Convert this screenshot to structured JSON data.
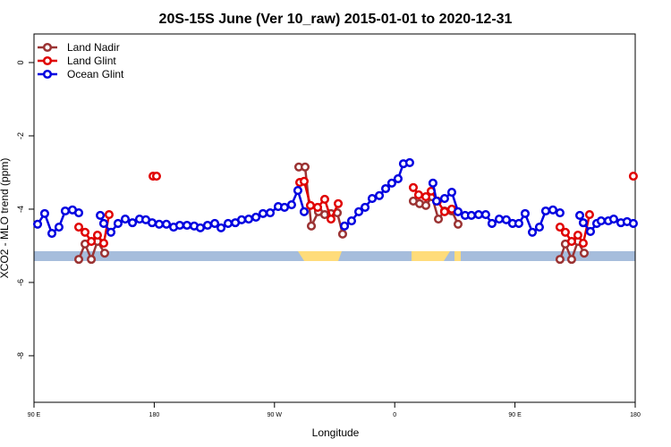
{
  "chart_data": {
    "type": "line",
    "title": "20S-15S June (Ver 10_raw)   2015-01-01 to 2020-12-31",
    "x_label": "Longitude",
    "y_label": "XCO2 - MLO trend (ppm)",
    "xlim": [
      90,
      540
    ],
    "ylim": [
      -9.27,
      0.78
    ],
    "xticks": [
      {
        "value": 90,
        "label": "90 E"
      },
      180,
      {
        "value": 270,
        "label": "90 W"
      },
      {
        "value": 360,
        "label": "0"
      },
      {
        "value": 450,
        "label": "90 E"
      },
      {
        "value": 540,
        "label": "180"
      }
    ],
    "yticks": [
      0,
      -2,
      -4,
      -6,
      -8
    ],
    "legend": "top-left",
    "series": [
      {
        "name": "Land Nadir",
        "color": "#9b3333",
        "x": [
          123.5,
          128.2,
          132.9,
          137.5,
          142.9,
          null,
          288.2,
          292.9,
          297.6,
          302.9,
          307.6,
          312.3,
          317.0,
          321.0,
          null,
          373.9,
          378.6,
          383.3,
          387.9,
          392.7,
          397.3,
          402.7,
          407.4,
          null,
          483.7,
          487.7,
          492.4,
          497.1,
          501.8
        ],
        "values": [
          -5.37,
          -4.95,
          -5.37,
          -4.88,
          -5.2,
          null,
          -2.85,
          -2.85,
          -4.46,
          -4.07,
          -4.15,
          -4.12,
          -4.1,
          -4.68,
          null,
          -3.78,
          -3.85,
          -3.9,
          -3.66,
          -4.27,
          -4.05,
          -4.05,
          -4.41,
          null,
          -5.37,
          -4.95,
          -5.37,
          -4.88,
          -5.2
        ]
      },
      {
        "name": "Land Glint",
        "color": "#e00000",
        "x": [
          123.5,
          128.2,
          132.9,
          137.5,
          142.2,
          146.2,
          null,
          179.1,
          181.7,
          null,
          288.9,
          292.2,
          296.9,
          302.3,
          307.6,
          312.3,
          317.7,
          null,
          373.9,
          377.9,
          383.3,
          387.3,
          392.0,
          397.3,
          402.7,
          null,
          483.7,
          487.7,
          492.4,
          497.1,
          501.1,
          505.8,
          null,
          538.6
        ],
        "values": [
          -4.49,
          -4.63,
          -4.88,
          -4.71,
          -4.93,
          -4.15,
          null,
          -3.1,
          -3.1,
          null,
          -3.27,
          -3.24,
          -3.9,
          -3.95,
          -3.73,
          -4.27,
          -3.85,
          null,
          -3.41,
          -3.61,
          -3.66,
          -3.51,
          -3.78,
          -4.07,
          -4.0,
          null,
          -4.49,
          -4.63,
          -4.88,
          -4.71,
          -4.93,
          -4.15,
          null,
          -3.1
        ]
      },
      {
        "name": "Ocean Glint",
        "color": "#0000e0",
        "x": [
          92.7,
          98.0,
          103.4,
          108.7,
          113.4,
          118.8,
          123.5,
          null,
          139.6,
          142.2,
          147.6,
          152.9,
          158.3,
          163.7,
          169.0,
          173.7,
          178.4,
          183.7,
          189.1,
          194.5,
          199.1,
          204.5,
          209.9,
          214.5,
          219.9,
          225.3,
          230.0,
          235.3,
          240.7,
          245.4,
          250.7,
          256.1,
          261.4,
          266.8,
          272.8,
          277.5,
          282.8,
          287.5,
          292.2,
          null,
          322.4,
          327.7,
          333.1,
          337.8,
          343.1,
          348.5,
          353.2,
          357.8,
          362.5,
          366.5,
          371.2,
          null,
          388.6,
          391.3,
          397.3,
          402.7,
          407.4,
          412.7,
          417.4,
          422.8,
          428.1,
          432.8,
          438.2,
          443.5,
          448.2,
          452.9,
          457.6,
          463.0,
          468.3,
          473.0,
          478.4,
          483.7,
          null,
          498.5,
          501.1,
          506.5,
          511.2,
          514.5,
          519.9,
          523.9,
          529.3,
          533.9,
          538.6
        ],
        "values": [
          -4.41,
          -4.12,
          -4.66,
          -4.49,
          -4.05,
          -4.02,
          -4.1,
          null,
          -4.17,
          -4.39,
          -4.63,
          -4.39,
          -4.27,
          -4.37,
          -4.27,
          -4.29,
          -4.37,
          -4.41,
          -4.41,
          -4.49,
          -4.44,
          -4.44,
          -4.46,
          -4.51,
          -4.44,
          -4.39,
          -4.51,
          -4.39,
          -4.37,
          -4.29,
          -4.27,
          -4.22,
          -4.12,
          -4.1,
          -3.93,
          -3.95,
          -3.88,
          -3.49,
          -4.07,
          null,
          -4.46,
          -4.32,
          -4.07,
          -3.95,
          -3.71,
          -3.63,
          -3.44,
          -3.29,
          -3.17,
          -2.76,
          -2.73,
          null,
          -3.29,
          -3.78,
          -3.71,
          -3.54,
          -4.07,
          -4.17,
          -4.17,
          -4.15,
          -4.15,
          -4.39,
          -4.27,
          -4.29,
          -4.39,
          -4.39,
          -4.12,
          -4.63,
          -4.49,
          -4.05,
          -4.02,
          -4.1,
          null,
          -4.17,
          -4.37,
          -4.61,
          -4.39,
          -4.32,
          -4.32,
          -4.27,
          -4.37,
          -4.34,
          -4.39
        ]
      }
    ]
  }
}
